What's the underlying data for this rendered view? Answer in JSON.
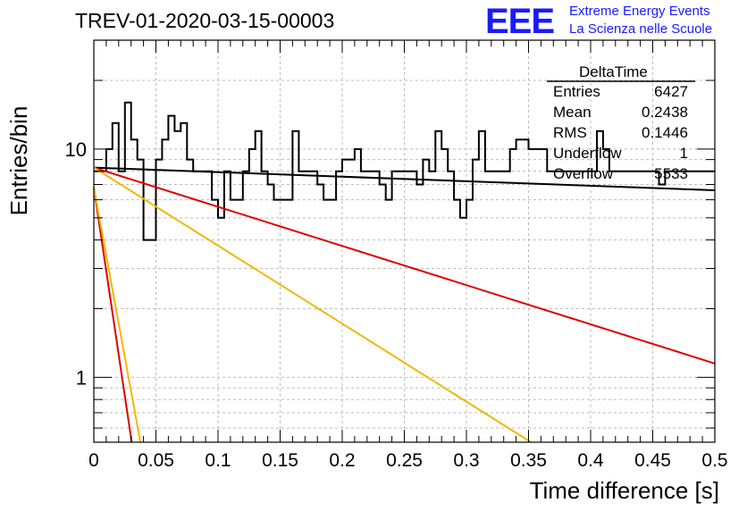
{
  "title": "TREV-01-2020-03-15-00003",
  "logo": {
    "mark": "EEE",
    "line1": "Extreme Energy Events",
    "line2": "La Scienza nelle Scuole"
  },
  "stats": {
    "title": "DeltaTime",
    "rows": [
      {
        "label": "Entries",
        "value": "6427"
      },
      {
        "label": "Mean",
        "value": "0.2438"
      },
      {
        "label": "RMS",
        "value": "0.1446"
      },
      {
        "label": "Underflow",
        "value": "1"
      },
      {
        "label": "Overflow",
        "value": "5533"
      }
    ]
  },
  "chart_data": {
    "type": "line",
    "title": "TREV-01-2020-03-15-00003",
    "xlabel": "Time difference [s]",
    "ylabel": "Entries/bin",
    "xlim": [
      0,
      0.5
    ],
    "ylim": [
      0.52,
      30
    ],
    "yscale": "log",
    "grid": true,
    "x_ticks": [
      "0",
      "0.05",
      "0.1",
      "0.15",
      "0.2",
      "0.25",
      "0.3",
      "0.35",
      "0.4",
      "0.45",
      "0.5"
    ],
    "y_ticks": [
      "1",
      "10"
    ],
    "histogram": {
      "bin_width": 0.005,
      "values": [
        8,
        8,
        10,
        13,
        8,
        16,
        11,
        9,
        4,
        4,
        9,
        11,
        14,
        12,
        13,
        9,
        8,
        8,
        8,
        6,
        5,
        8,
        6,
        6,
        8,
        10,
        12,
        8,
        7,
        6,
        6,
        6,
        12,
        8,
        8,
        8,
        7,
        6,
        6,
        8,
        9,
        9,
        10,
        8,
        8,
        8,
        7,
        6,
        8,
        8,
        8,
        8,
        7,
        9,
        8,
        12,
        10,
        8,
        6,
        5,
        6,
        9,
        12,
        8,
        8,
        8,
        8,
        10,
        11,
        11,
        10,
        10,
        10,
        8,
        8,
        8,
        8,
        8,
        8,
        8,
        8,
        12,
        10,
        8,
        8,
        8,
        8,
        8,
        8,
        8,
        8,
        7,
        8,
        8,
        8,
        8,
        8,
        8,
        8,
        8,
        8
      ]
    },
    "fits": [
      {
        "color": "#000000",
        "points": [
          [
            0.0,
            8.3
          ],
          [
            0.5,
            6.6
          ]
        ]
      },
      {
        "color": "#e00000",
        "points": [
          [
            0.0,
            8.3
          ],
          [
            0.5,
            1.15
          ]
        ]
      },
      {
        "color": "#f0b800",
        "points": [
          [
            0.0,
            8.3
          ],
          [
            0.352,
            0.52
          ]
        ]
      },
      {
        "color": "#e00000",
        "points": [
          [
            0.0,
            6.8
          ],
          [
            0.0305,
            0.52
          ]
        ]
      },
      {
        "color": "#f0b800",
        "points": [
          [
            0.0,
            6.8
          ],
          [
            0.0375,
            0.52
          ]
        ]
      }
    ]
  }
}
